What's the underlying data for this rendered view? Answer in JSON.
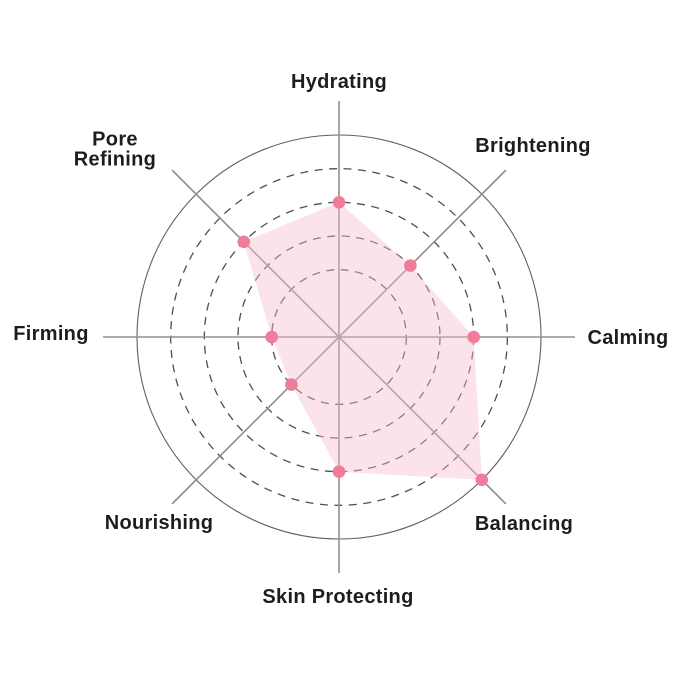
{
  "chart_data": {
    "type": "radar",
    "title": "",
    "categories": [
      "Hydrating",
      "Brightening",
      "Calming",
      "Balancing",
      "Skin Protecting",
      "Nourishing",
      "Firming",
      "Pore Refining"
    ],
    "values": [
      4,
      3,
      4,
      6,
      4,
      2,
      2,
      4
    ],
    "scale_max": 6,
    "grid": {
      "dashed_ring_levels": [
        2,
        3,
        4,
        5
      ],
      "solid_outer_ring_level": 6,
      "axis_lines": 8,
      "grid_on": true
    },
    "legend_position": "none"
  },
  "colors": {
    "background": "#ffffff",
    "polygon_fill": "#F8BBD0",
    "polygon_fill_opacity": 0.42,
    "point_fill": "#EF7D99",
    "axis_line": "#8f8f8f",
    "dashed_ring": "#4f4f4f",
    "outer_ring": "#606060",
    "label_text": "#1d1d1d"
  }
}
